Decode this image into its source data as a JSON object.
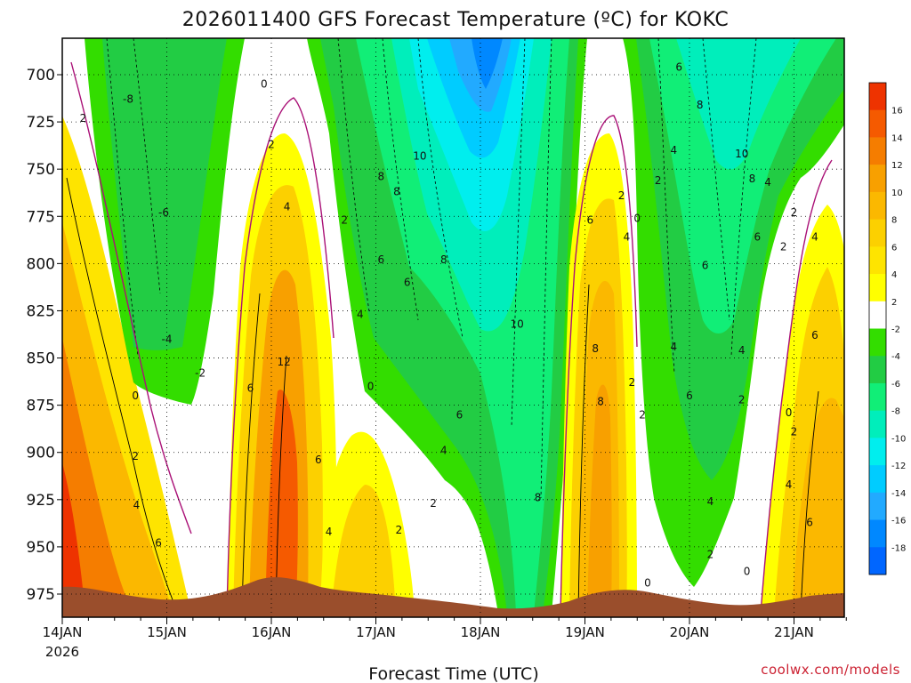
{
  "chart_data": {
    "type": "heatmap",
    "title": "2026011400 GFS Forecast Temperature (ºC) for KOKC",
    "xlabel": "Forecast Time (UTC)",
    "ylabel": "",
    "credit": "coolwx.com/models",
    "x_ticks": [
      "14JAN",
      "15JAN",
      "16JAN",
      "17JAN",
      "18JAN",
      "19JAN",
      "20JAN",
      "21JAN"
    ],
    "x_year_label": "2026",
    "y_ticks": [
      700,
      725,
      750,
      775,
      800,
      825,
      850,
      875,
      900,
      925,
      950,
      975
    ],
    "ylim": [
      975,
      685
    ],
    "color_scale": {
      "levels": [
        16,
        14,
        12,
        10,
        8,
        6,
        4,
        2,
        -2,
        -4,
        -6,
        -8,
        -10,
        -12,
        -14,
        -16,
        -18
      ],
      "colors": [
        "#ee3300",
        "#f55a00",
        "#f57d00",
        "#f8a000",
        "#fbb800",
        "#fcd000",
        "#fee400",
        "#ffff00",
        "#ffffff",
        "#33dd00",
        "#22cc44",
        "#11ee77",
        "#00eebb",
        "#00eeee",
        "#00ccff",
        "#22aaff",
        "#0088ff",
        "#0066ff"
      ]
    },
    "terrain_color": "#9a4e2c",
    "contour_labels": [
      {
        "x": 14.2,
        "p": 723,
        "text": "2"
      },
      {
        "x": 14.63,
        "p": 713,
        "text": "-8"
      },
      {
        "x": 14.97,
        "p": 773,
        "text": "-6"
      },
      {
        "x": 15.0,
        "p": 840,
        "text": "-4"
      },
      {
        "x": 15.32,
        "p": 858,
        "text": "-2"
      },
      {
        "x": 14.7,
        "p": 870,
        "text": "0"
      },
      {
        "x": 14.7,
        "p": 902,
        "text": "2"
      },
      {
        "x": 14.71,
        "p": 928,
        "text": "4"
      },
      {
        "x": 14.92,
        "p": 948,
        "text": "6"
      },
      {
        "x": 15.93,
        "p": 705,
        "text": "0"
      },
      {
        "x": 16.0,
        "p": 737,
        "text": "2"
      },
      {
        "x": 16.15,
        "p": 770,
        "text": "4"
      },
      {
        "x": 15.8,
        "p": 866,
        "text": "6"
      },
      {
        "x": 16.12,
        "p": 852,
        "text": "12"
      },
      {
        "x": 16.45,
        "p": 904,
        "text": "6"
      },
      {
        "x": 16.55,
        "p": 942,
        "text": "4"
      },
      {
        "x": 16.95,
        "p": 865,
        "text": "0"
      },
      {
        "x": 17.22,
        "p": 941,
        "text": "2"
      },
      {
        "x": 16.85,
        "p": 827,
        "text": "4"
      },
      {
        "x": 16.7,
        "p": 777,
        "text": "2"
      },
      {
        "x": 17.05,
        "p": 754,
        "text": "8"
      },
      {
        "x": 17.2,
        "p": 762,
        "text": "8"
      },
      {
        "x": 17.42,
        "p": 743,
        "text": "10"
      },
      {
        "x": 17.05,
        "p": 798,
        "text": "6"
      },
      {
        "x": 17.3,
        "p": 810,
        "text": "6"
      },
      {
        "x": 17.65,
        "p": 798,
        "text": "8"
      },
      {
        "x": 18.35,
        "p": 832,
        "text": "10"
      },
      {
        "x": 17.8,
        "p": 880,
        "text": "6"
      },
      {
        "x": 17.65,
        "p": 899,
        "text": "4"
      },
      {
        "x": 17.55,
        "p": 927,
        "text": "2"
      },
      {
        "x": 18.55,
        "p": 924,
        "text": "8"
      },
      {
        "x": 19.35,
        "p": 764,
        "text": "2"
      },
      {
        "x": 19.05,
        "p": 777,
        "text": "6"
      },
      {
        "x": 19.4,
        "p": 786,
        "text": "4"
      },
      {
        "x": 19.1,
        "p": 845,
        "text": "8"
      },
      {
        "x": 19.15,
        "p": 873,
        "text": "8"
      },
      {
        "x": 19.45,
        "p": 863,
        "text": "2"
      },
      {
        "x": 19.55,
        "p": 880,
        "text": "2"
      },
      {
        "x": 19.5,
        "p": 776,
        "text": "0"
      },
      {
        "x": 19.7,
        "p": 756,
        "text": "2"
      },
      {
        "x": 19.85,
        "p": 740,
        "text": "4"
      },
      {
        "x": 20.1,
        "p": 716,
        "text": "8"
      },
      {
        "x": 19.9,
        "p": 696,
        "text": "6"
      },
      {
        "x": 20.15,
        "p": 801,
        "text": "6"
      },
      {
        "x": 19.85,
        "p": 844,
        "text": "4"
      },
      {
        "x": 20.0,
        "p": 870,
        "text": "6"
      },
      {
        "x": 20.2,
        "p": 926,
        "text": "4"
      },
      {
        "x": 20.2,
        "p": 954,
        "text": "2"
      },
      {
        "x": 19.6,
        "p": 969,
        "text": "0"
      },
      {
        "x": 20.5,
        "p": 742,
        "text": "10"
      },
      {
        "x": 20.6,
        "p": 755,
        "text": "8"
      },
      {
        "x": 20.75,
        "p": 757,
        "text": "4"
      },
      {
        "x": 20.65,
        "p": 786,
        "text": "6"
      },
      {
        "x": 20.9,
        "p": 791,
        "text": "2"
      },
      {
        "x": 21.0,
        "p": 773,
        "text": "2"
      },
      {
        "x": 20.5,
        "p": 846,
        "text": "4"
      },
      {
        "x": 20.5,
        "p": 872,
        "text": "2"
      },
      {
        "x": 20.95,
        "p": 879,
        "text": "0"
      },
      {
        "x": 21.0,
        "p": 889,
        "text": "2"
      },
      {
        "x": 20.95,
        "p": 917,
        "text": "4"
      },
      {
        "x": 21.2,
        "p": 786,
        "text": "4"
      },
      {
        "x": 21.2,
        "p": 838,
        "text": "6"
      },
      {
        "x": 21.15,
        "p": 937,
        "text": "6"
      },
      {
        "x": 20.55,
        "p": 963,
        "text": "0"
      }
    ]
  }
}
